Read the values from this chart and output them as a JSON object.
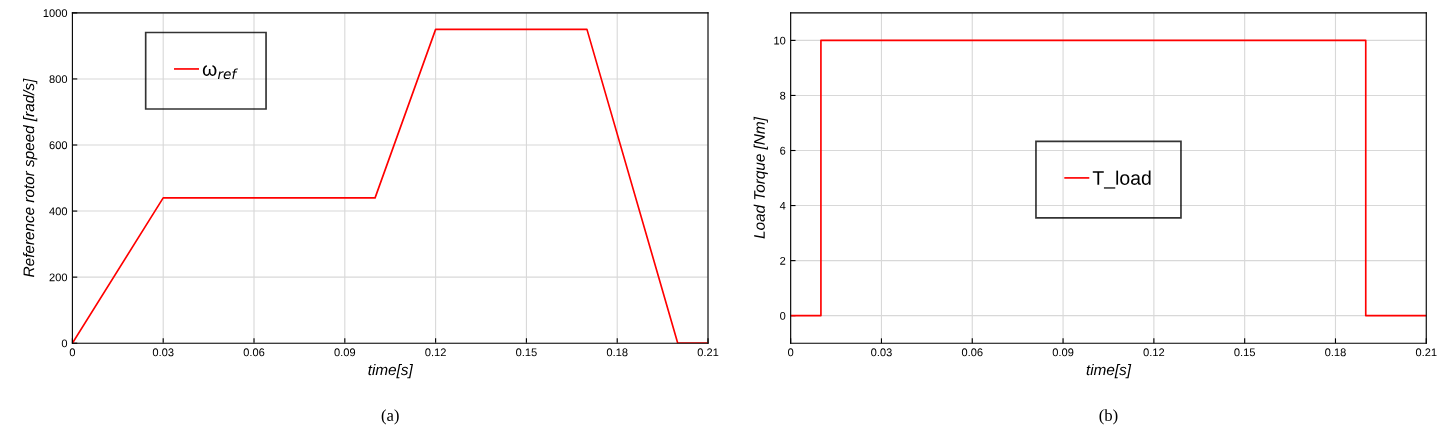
{
  "chart_data": [
    {
      "type": "line",
      "xlabel": "time[s]",
      "ylabel": "Reference rotor speed [rad/s]",
      "annotations": [
        "(a)"
      ],
      "x": [
        0,
        0.03,
        0.1,
        0.12,
        0.17,
        0.2,
        0.21
      ],
      "series": [
        {
          "name": "ω$_{ref}$",
          "color": "#ff0000",
          "values": [
            0,
            440,
            440,
            950,
            950,
            0,
            0
          ]
        }
      ],
      "xlim": [
        0,
        0.21
      ],
      "xticks": [
        0,
        0.03,
        0.06,
        0.09,
        0.12,
        0.15,
        0.18,
        0.21
      ],
      "ylim": [
        0,
        1000
      ],
      "yticks": [
        0,
        200,
        400,
        600,
        800,
        1000
      ],
      "grid": true,
      "legend": "top left"
    },
    {
      "type": "line",
      "xlabel": "time[s]",
      "ylabel": "Load Torque [Nm]",
      "annotations": [
        "(b)"
      ],
      "x": [
        0,
        0.01,
        0.01,
        0.19,
        0.19,
        0.21
      ],
      "series": [
        {
          "name": "T_load",
          "color": "#ff0000",
          "values": [
            0,
            0,
            10,
            10,
            0,
            0
          ]
        }
      ],
      "xlim": [
        0,
        0.21
      ],
      "xticks": [
        0,
        0.03,
        0.06,
        0.09,
        0.12,
        0.15,
        0.18,
        0.21
      ],
      "ylim": [
        -1,
        11
      ],
      "yticks": [
        0,
        2,
        4,
        6,
        8,
        10
      ],
      "grid": true,
      "legend": "center"
    }
  ]
}
